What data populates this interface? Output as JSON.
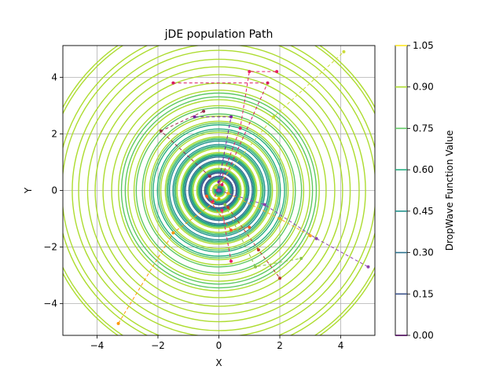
{
  "chart_data": {
    "type": "contour",
    "title": "jDE population Path",
    "xlabel": "X",
    "ylabel": "Y",
    "xlim": [
      -5.12,
      5.12
    ],
    "ylim": [
      -5.12,
      5.12
    ],
    "xticks": [
      -4,
      -2,
      0,
      2,
      4
    ],
    "yticks": [
      -4,
      -2,
      0,
      2,
      4
    ],
    "xtick_labels": [
      "−4",
      "−2",
      "0",
      "2",
      "4"
    ],
    "ytick_labels": [
      "−4",
      "−2",
      "0",
      "2",
      "4"
    ],
    "grid": true,
    "surface": "DropWave",
    "colorbar": {
      "label": "DropWave Function Value",
      "ticks": [
        0.0,
        0.15,
        0.3,
        0.45,
        0.6,
        0.75,
        0.9,
        1.05
      ],
      "tick_labels": [
        "0.00",
        "0.15",
        "0.30",
        "0.45",
        "0.60",
        "0.75",
        "0.90",
        "1.05"
      ],
      "colors": [
        "#440154",
        "#3b528b",
        "#2c728e",
        "#21918c",
        "#28ae80",
        "#5ec962",
        "#addc30",
        "#fde725"
      ]
    },
    "paths": [
      {
        "color": "#8e44ad",
        "points": [
          [
            0.0,
            0.0
          ],
          [
            1.5,
            -0.5
          ],
          [
            3.2,
            -1.7
          ],
          [
            4.9,
            -2.7
          ]
        ]
      },
      {
        "color": "#c0392b",
        "points": [
          [
            0.3,
            -0.6
          ],
          [
            1.3,
            -2.1
          ],
          [
            2.0,
            -3.1
          ]
        ]
      },
      {
        "color": "#e91e63",
        "points": [
          [
            -0.2,
            -0.4
          ],
          [
            0.7,
            2.2
          ],
          [
            1.0,
            4.2
          ],
          [
            1.9,
            4.2
          ]
        ]
      },
      {
        "color": "#d81b60",
        "points": [
          [
            0.1,
            0.2
          ],
          [
            1.6,
            3.8
          ],
          [
            -1.5,
            3.8
          ]
        ]
      },
      {
        "color": "#7b1fa2",
        "points": [
          [
            0.0,
            0.3
          ],
          [
            0.4,
            2.6
          ],
          [
            -0.8,
            2.6
          ]
        ]
      },
      {
        "color": "#9c2c4a",
        "points": [
          [
            -0.3,
            0.5
          ],
          [
            -1.9,
            2.1
          ],
          [
            -0.5,
            2.8
          ]
        ]
      },
      {
        "color": "#ff9800",
        "points": [
          [
            0.0,
            -0.3
          ],
          [
            -1.5,
            -1.5
          ],
          [
            -3.3,
            -4.7
          ]
        ]
      },
      {
        "color": "#f9a825",
        "points": [
          [
            0.3,
            -0.1
          ],
          [
            2.0,
            -1.0
          ],
          [
            3.0,
            -1.6
          ]
        ]
      },
      {
        "color": "#cddc39",
        "points": [
          [
            -0.1,
            0.1
          ],
          [
            1.8,
            2.6
          ],
          [
            4.1,
            4.9
          ]
        ]
      },
      {
        "color": "#8bc34a",
        "points": [
          [
            0.2,
            -0.5
          ],
          [
            1.2,
            -2.7
          ],
          [
            2.7,
            -2.4
          ]
        ]
      },
      {
        "color": "#ff5722",
        "points": [
          [
            -0.4,
            -0.2
          ],
          [
            0.4,
            -1.4
          ],
          [
            1.0,
            -1.3
          ]
        ]
      },
      {
        "color": "#e91e63",
        "points": [
          [
            0.1,
            -0.7
          ],
          [
            0.4,
            -2.5
          ]
        ]
      }
    ]
  }
}
